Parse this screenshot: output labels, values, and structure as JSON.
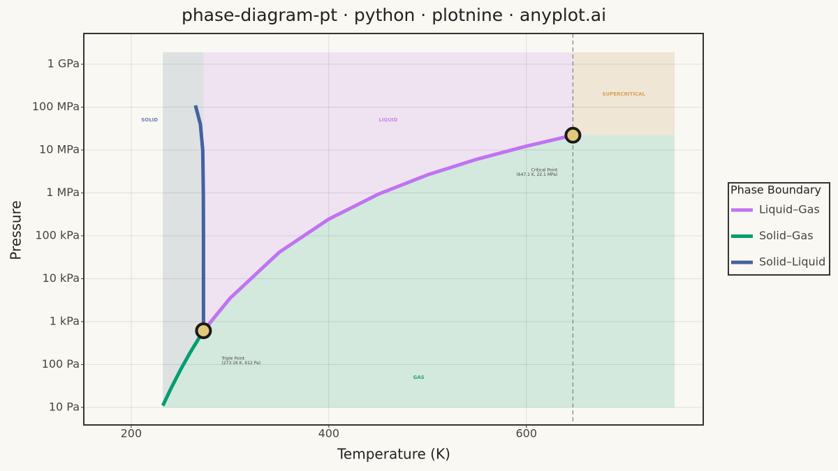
{
  "chart_data": {
    "type": "line",
    "title": "phase-diagram-pt · python · plotnine · anyplot.ai",
    "xlabel": "Temperature (K)",
    "ylabel": "Pressure",
    "xlim": [
      152,
      779
    ],
    "xticks": [
      200,
      400,
      600
    ],
    "ylim": [
      3.9,
      5200000000
    ],
    "ylog": true,
    "yticks": [
      {
        "value": 10,
        "label": "10 Pa"
      },
      {
        "value": 100,
        "label": "100 Pa"
      },
      {
        "value": 1000,
        "label": "1 kPa"
      },
      {
        "value": 10000,
        "label": "10 kPa"
      },
      {
        "value": 100000,
        "label": "100 kPa"
      },
      {
        "value": 1000000,
        "label": "1 MPa"
      },
      {
        "value": 10000000,
        "label": "10 MPa"
      },
      {
        "value": 100000000,
        "label": "100 MPa"
      },
      {
        "value": 1000000000,
        "label": "1 GPa"
      }
    ],
    "grid": true,
    "legend_title": "Phase Boundary",
    "legend_position": "right",
    "series": [
      {
        "name": "Liquid–Gas",
        "color": "#c073f2",
        "x": [
          273.16,
          300,
          350,
          400,
          450,
          500,
          550,
          600,
          647.1
        ],
        "values": [
          612,
          3500,
          41700,
          245000,
          932000,
          2640000,
          6100000,
          12300000,
          22100000
        ]
      },
      {
        "name": "Solid–Gas",
        "color": "#009e73",
        "x": [
          232,
          240,
          250,
          260,
          273.16
        ],
        "values": [
          11,
          27,
          76,
          196,
          612
        ]
      },
      {
        "name": "Solid–Liquid",
        "color": "#4461a0",
        "x": [
          273.16,
          273.15,
          273.0,
          272.4,
          270,
          265
        ],
        "values": [
          612,
          100000,
          1000000,
          10000000,
          40000000,
          110000000
        ]
      }
    ],
    "regions": [
      {
        "label": "SOLID",
        "color": "#dde1e2",
        "label_color": "#6b82b8",
        "x": [
          232,
          273.16
        ],
        "y": [
          10,
          1900000000
        ]
      },
      {
        "label": "LIQUID",
        "color": "#efe3f1",
        "label_color": "#c78ae8",
        "x": [
          273.16,
          647.1
        ],
        "y": [
          10,
          1900000000
        ]
      },
      {
        "label": "SUPERCRITICAL",
        "color": "#efe6d5",
        "label_color": "#d4a35a",
        "x": [
          647.1,
          750
        ],
        "y": [
          22100000,
          1900000000
        ]
      },
      {
        "label": "GAS",
        "color": "#d3e9dd",
        "label_color": "#2aa57a",
        "x": [
          232,
          750
        ],
        "y": [
          10,
          22100000
        ]
      }
    ],
    "points": [
      {
        "label": [
          "Triple Point",
          "(273.16 K, 612 Pa)"
        ],
        "x": 273.16,
        "y": 612
      },
      {
        "label": [
          "Critical Point",
          "(647.1 K, 22.1 MPa)"
        ],
        "x": 647.1,
        "y": 22100000
      }
    ]
  }
}
